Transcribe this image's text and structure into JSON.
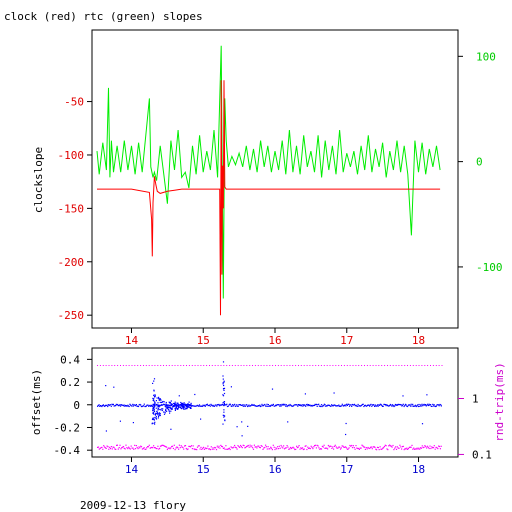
{
  "footer": "2009-12-13 flory",
  "colors": {
    "clock": "#ff0000",
    "rtc": "#00ee00",
    "offset": "#0000ff",
    "rndtrip": "#ff00ff",
    "axis": "#000000"
  },
  "chart_data": [
    {
      "type": "line",
      "title": "clock (red) rtc (green) slopes",
      "ylabel": "clockslope",
      "x_ticks": [
        "14",
        "15",
        "16",
        "17",
        "18"
      ],
      "y_ticks": [
        "-50",
        "-100",
        "-150",
        "-200",
        "-250"
      ],
      "y2_ticks": [
        "100",
        "0",
        "-100"
      ],
      "xlim": [
        13.45,
        18.55
      ],
      "ylim": [
        -262,
        17
      ],
      "y2lim": [
        -158,
        125
      ],
      "series": [
        {
          "color": "#00ee00",
          "axis": "right",
          "x": [
            13.52,
            13.55,
            13.6,
            13.65,
            13.68,
            13.7,
            13.72,
            13.75,
            13.8,
            13.85,
            13.9,
            13.95,
            14.0,
            14.05,
            14.1,
            14.15,
            14.2,
            14.25,
            14.27,
            14.3,
            14.32,
            14.35,
            14.4,
            14.45,
            14.5,
            14.55,
            14.6,
            14.65,
            14.7,
            14.75,
            14.8,
            14.85,
            14.9,
            14.95,
            15.0,
            15.05,
            15.1,
            15.15,
            15.2,
            15.25,
            15.28,
            15.3,
            15.32,
            15.35,
            15.4,
            15.45,
            15.5,
            15.55,
            15.6,
            15.65,
            15.7,
            15.75,
            15.8,
            15.85,
            15.9,
            15.95,
            16.0,
            16.05,
            16.1,
            16.15,
            16.2,
            16.25,
            16.3,
            16.35,
            16.4,
            16.45,
            16.5,
            16.55,
            16.6,
            16.65,
            16.7,
            16.75,
            16.8,
            16.85,
            16.9,
            16.95,
            17.0,
            17.05,
            17.1,
            17.15,
            17.2,
            17.25,
            17.3,
            17.35,
            17.4,
            17.45,
            17.5,
            17.55,
            17.6,
            17.65,
            17.7,
            17.75,
            17.8,
            17.85,
            17.9,
            17.95,
            18.0,
            18.05,
            18.1,
            18.15,
            18.2,
            18.25,
            18.3
          ],
          "y": [
            10,
            -12,
            18,
            -8,
            70,
            -15,
            20,
            -10,
            15,
            -10,
            20,
            -8,
            15,
            -12,
            18,
            -10,
            25,
            60,
            -5,
            -15,
            -10,
            -18,
            15,
            -12,
            -40,
            20,
            -8,
            30,
            -15,
            -10,
            -25,
            15,
            -12,
            25,
            -10,
            10,
            -8,
            30,
            -15,
            110,
            -130,
            60,
            20,
            -5,
            5,
            -3,
            8,
            -5,
            15,
            -8,
            12,
            -10,
            20,
            -5,
            15,
            -10,
            10,
            -8,
            20,
            -12,
            30,
            -10,
            15,
            -12,
            25,
            -5,
            10,
            -10,
            25,
            -15,
            20,
            -8,
            15,
            -12,
            30,
            -10,
            8,
            -5,
            10,
            -12,
            15,
            -8,
            25,
            -10,
            12,
            -5,
            18,
            -15,
            10,
            -8,
            20,
            -10,
            15,
            -12,
            -70,
            20,
            -10,
            18,
            -12,
            12,
            -5,
            15,
            -8
          ]
        },
        {
          "color": "#ff0000",
          "axis": "left",
          "x": [
            13.52,
            14.0,
            14.25,
            14.28,
            14.29,
            14.3,
            14.32,
            14.34,
            14.36,
            14.4,
            14.5,
            14.6,
            14.7,
            14.8,
            14.9,
            15.0,
            15.2,
            15.23,
            15.24,
            15.25,
            15.26,
            15.27,
            15.28,
            15.29,
            15.3,
            15.32,
            15.4,
            15.8,
            16.4,
            17.0,
            17.6,
            18.0,
            18.3
          ],
          "y": [
            -132,
            -132,
            -135,
            -160,
            -195,
            -145,
            -120,
            -128,
            -134,
            -136,
            -134,
            -133,
            -132,
            -132,
            -132,
            -132,
            -132,
            -132,
            -250,
            -30,
            -212,
            -110,
            -150,
            -30,
            -130,
            -132,
            -132,
            -132,
            -132,
            -132,
            -132,
            -132,
            -132
          ]
        }
      ]
    },
    {
      "type": "scatter",
      "ylabel": "offset(ms)",
      "y2label": "rnd-trip(ms)",
      "x_ticks": [
        "14",
        "15",
        "16",
        "17",
        "18"
      ],
      "y_ticks": [
        "0.4",
        "0.2",
        "0",
        "-0.2",
        "-0.4"
      ],
      "y2_ticks": [
        "1",
        "0.1"
      ],
      "y2_scale": "log",
      "xlim": [
        13.45,
        18.55
      ],
      "ylim": [
        -0.46,
        0.5
      ],
      "y2lim": [
        0.09,
        8.0
      ],
      "series": [
        {
          "color": "#0000ff",
          "axis": "left",
          "baseline": 0.0,
          "spike_x": [
            14.3,
            15.28
          ],
          "spike_peak": [
            0.25,
            0.44
          ]
        },
        {
          "color": "#ff00ff",
          "axis": "left",
          "baseline": -0.37,
          "dotted_line": 0.35
        }
      ]
    }
  ]
}
